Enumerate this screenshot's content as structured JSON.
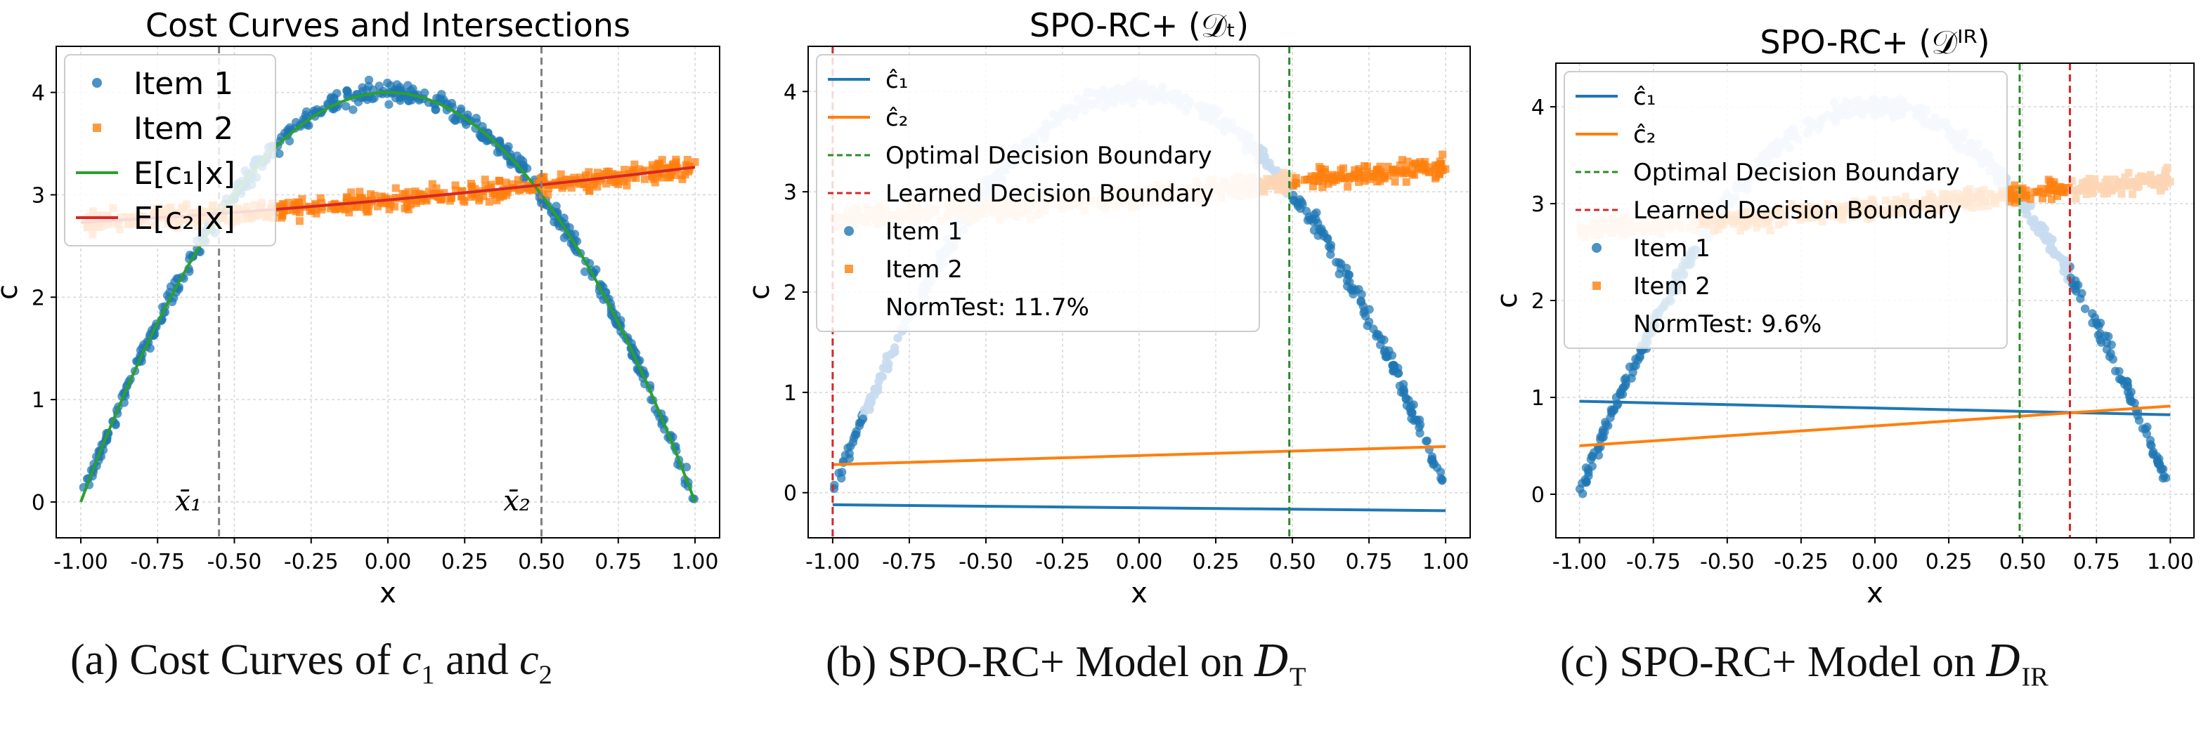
{
  "figure": {
    "captions": [
      {
        "label": "(a)",
        "text": "Cost Curves of",
        "sym1": "c",
        "sub1": "1",
        "mid": "and",
        "sym2": "c",
        "sub2": "2"
      },
      {
        "label": "(b)",
        "text": "SPO-RC+ Model on",
        "sym": "D",
        "sub": "T"
      },
      {
        "label": "(c)",
        "text": "SPO-RC+ Model on",
        "sym": "D",
        "sub": "IR"
      }
    ],
    "colors": {
      "item1": "#1f77b4",
      "item2": "#ff7f0e",
      "e1": "#2ca02c",
      "e2": "#d62728",
      "item1_light": "#c6dbef",
      "item2_light": "#fdd5b4",
      "optimal": "#2a8a2a",
      "learned": "#d62728",
      "grey": "#808080"
    }
  },
  "chart_data": [
    {
      "type": "scatter",
      "title": "Cost Curves and Intersections",
      "xlabel": "x",
      "ylabel": "c",
      "xlim": [
        -1.08,
        1.08
      ],
      "ylim": [
        -0.35,
        4.45
      ],
      "xticks": [
        "-1.00",
        "-0.75",
        "-0.50",
        "-0.25",
        "0.00",
        "0.25",
        "0.50",
        "0.75",
        "1.00"
      ],
      "xtick_values": [
        -1,
        -0.75,
        -0.5,
        -0.25,
        0,
        0.25,
        0.5,
        0.75,
        1
      ],
      "yticks": [
        "0",
        "1",
        "2",
        "3",
        "4"
      ],
      "ytick_values": [
        0,
        1,
        2,
        3,
        4
      ],
      "grid": true,
      "legend_position": "top-left",
      "series": [
        {
          "name": "Item 1",
          "kind": "scatter",
          "marker": "circle",
          "color_key": "item1",
          "curve": "4-4x^2",
          "noise": 0.1
        },
        {
          "name": "Item 2",
          "kind": "scatter",
          "marker": "square",
          "color_key": "item2",
          "curve": "e2",
          "noise": 0.1
        },
        {
          "name": "E[c1|x]",
          "kind": "line",
          "color_key": "e1",
          "curve": "4-4x^2"
        },
        {
          "name": "E[c2|x]",
          "kind": "line",
          "color_key": "e2",
          "curve": "e2"
        }
      ],
      "legend": [
        {
          "label": "Item 1",
          "marker": "circle",
          "color_key": "item1"
        },
        {
          "label": "Item 2",
          "marker": "square",
          "color_key": "item2"
        },
        {
          "label": "E[c₁|x]",
          "marker": "line",
          "color_key": "e1"
        },
        {
          "label": "E[c₂|x]",
          "marker": "line",
          "color_key": "e2"
        }
      ],
      "vlines": [
        {
          "x": -0.55,
          "color_key": "grey",
          "style": "dashed"
        },
        {
          "x": 0.5,
          "color_key": "grey",
          "style": "dashed"
        }
      ],
      "annotations": [
        {
          "text": "x̄₁",
          "x": -0.65,
          "y": 0.0
        },
        {
          "text": "x̄₂",
          "x": 0.42,
          "y": 0.0
        }
      ]
    },
    {
      "type": "scatter",
      "title": "SPO-RC+ (𝒟ₜ)",
      "xlabel": "x",
      "ylabel": "c",
      "xlim": [
        -1.08,
        1.08
      ],
      "ylim": [
        -0.45,
        4.45
      ],
      "xticks": [
        "-1.00",
        "-0.75",
        "-0.50",
        "-0.25",
        "0.00",
        "0.25",
        "0.50",
        "0.75",
        "1.00"
      ],
      "xtick_values": [
        -1,
        -0.75,
        -0.5,
        -0.25,
        0,
        0.25,
        0.5,
        0.75,
        1
      ],
      "yticks": [
        "0",
        "1",
        "2",
        "3",
        "4"
      ],
      "ytick_values": [
        0,
        1,
        2,
        3,
        4
      ],
      "grid": true,
      "legend_position": "top-left",
      "series": [
        {
          "name": "Item 1",
          "kind": "scatter",
          "marker": "circle",
          "color_key": "item1",
          "light_key": "item1_light",
          "curve": "4-4x^2",
          "noise": 0.1,
          "dark_when": "x<-0.9|x>0.5"
        },
        {
          "name": "Item 2",
          "kind": "scatter",
          "marker": "square",
          "color_key": "item2",
          "light_key": "item2_light",
          "curve": "e2",
          "noise": 0.1,
          "dark_when": "x>0.5"
        },
        {
          "name": "ĉ₁",
          "kind": "line",
          "color_key": "item1",
          "x": [
            -1,
            1
          ],
          "y": [
            -0.12,
            -0.18
          ]
        },
        {
          "name": "ĉ₂",
          "kind": "line",
          "color_key": "item2",
          "x": [
            -1,
            1
          ],
          "y": [
            0.28,
            0.46
          ]
        }
      ],
      "legend": [
        {
          "label": "ĉ₁",
          "marker": "line",
          "color_key": "item1"
        },
        {
          "label": "ĉ₂",
          "marker": "line",
          "color_key": "item2"
        },
        {
          "label": "Optimal Decision Boundary",
          "marker": "dashed",
          "color_key": "optimal"
        },
        {
          "label": "Learned Decision Boundary",
          "marker": "dashed",
          "color_key": "learned"
        },
        {
          "label": "Item 1",
          "marker": "circle",
          "color_key": "item1"
        },
        {
          "label": "Item 2",
          "marker": "square",
          "color_key": "item2"
        },
        {
          "label": "NormTest: 11.7%",
          "marker": "none",
          "color_key": "item1"
        }
      ],
      "vlines": [
        {
          "x": 0.49,
          "color_key": "optimal",
          "style": "dashed"
        },
        {
          "x": -1.0,
          "color_key": "learned",
          "style": "dashed"
        }
      ],
      "annotations": []
    },
    {
      "type": "scatter",
      "title": "SPO-RC+ (𝒟ᴵᴿ)",
      "xlabel": "x",
      "ylabel": "c",
      "xlim": [
        -1.08,
        1.08
      ],
      "ylim": [
        -0.45,
        4.45
      ],
      "xticks": [
        "-1.00",
        "-0.75",
        "-0.50",
        "-0.25",
        "0.00",
        "0.25",
        "0.50",
        "0.75",
        "1.00"
      ],
      "xtick_values": [
        -1,
        -0.75,
        -0.5,
        -0.25,
        0,
        0.25,
        0.5,
        0.75,
        1
      ],
      "yticks": [
        "0",
        "1",
        "2",
        "3",
        "4"
      ],
      "ytick_values": [
        0,
        1,
        2,
        3,
        4
      ],
      "grid": true,
      "legend_position": "top-left",
      "series": [
        {
          "name": "Item 1",
          "kind": "scatter",
          "marker": "circle",
          "color_key": "item1",
          "light_key": "item1_light",
          "curve": "4-4x^2",
          "noise": 0.1,
          "dark_when": "x<-0.6|x>0.66"
        },
        {
          "name": "Item 2",
          "kind": "scatter",
          "marker": "square",
          "color_key": "item2",
          "light_key": "item2_light",
          "curve": "e2",
          "noise": 0.1,
          "dark_when": "x>-0.6&x<0.66"
        },
        {
          "name": "ĉ₁",
          "kind": "line",
          "color_key": "item1",
          "x": [
            -1,
            1
          ],
          "y": [
            0.96,
            0.82
          ]
        },
        {
          "name": "ĉ₂",
          "kind": "line",
          "color_key": "item2",
          "x": [
            -1,
            1
          ],
          "y": [
            0.5,
            0.91
          ]
        }
      ],
      "legend": [
        {
          "label": "ĉ₁",
          "marker": "line",
          "color_key": "item1"
        },
        {
          "label": "ĉ₂",
          "marker": "line",
          "color_key": "item2"
        },
        {
          "label": "Optimal Decision Boundary",
          "marker": "dashed",
          "color_key": "optimal"
        },
        {
          "label": "Learned Decision Boundary",
          "marker": "dashed",
          "color_key": "learned"
        },
        {
          "label": "Item 1",
          "marker": "circle",
          "color_key": "item1"
        },
        {
          "label": "Item 2",
          "marker": "square",
          "color_key": "item2"
        },
        {
          "label": "NormTest: 9.6%",
          "marker": "none",
          "color_key": "item1"
        }
      ],
      "vlines": [
        {
          "x": 0.49,
          "color_key": "optimal",
          "style": "dashed"
        },
        {
          "x": 0.66,
          "color_key": "learned",
          "style": "dashed"
        }
      ],
      "annotations": []
    }
  ]
}
